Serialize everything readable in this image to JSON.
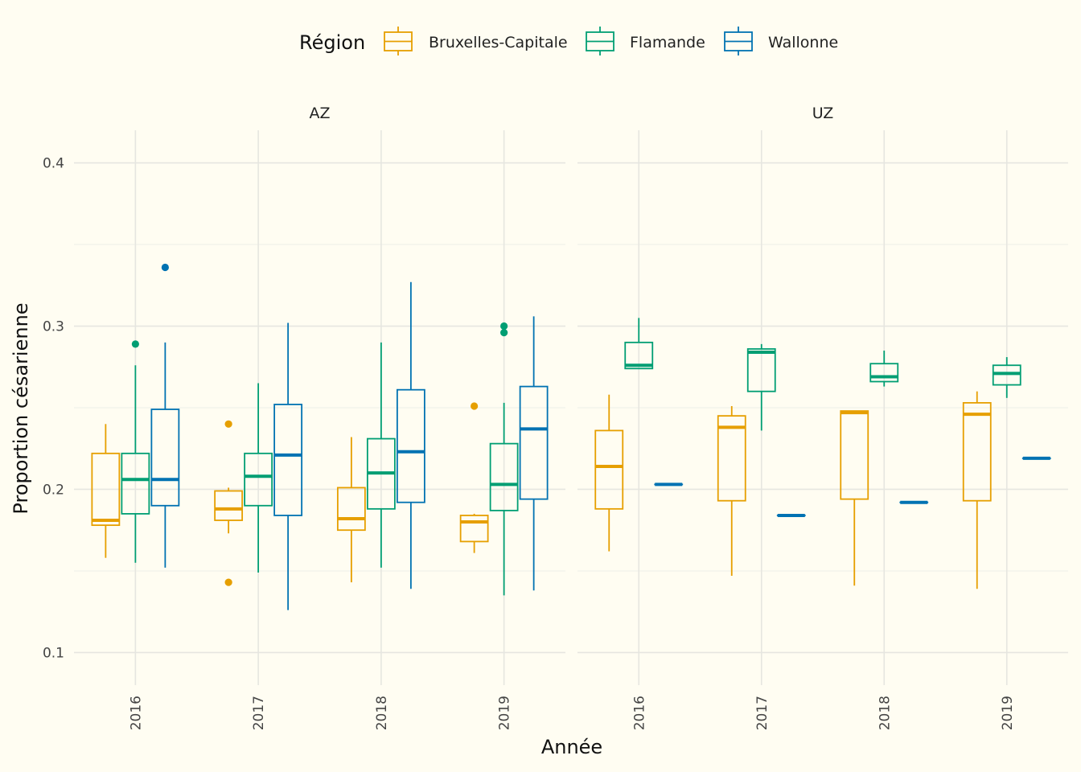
{
  "chart_data": {
    "type": "boxplot",
    "xlabel": "Année",
    "ylabel": "Proportion césarienne",
    "ylim": [
      0.08,
      0.42
    ],
    "yticks": [
      0.1,
      0.2,
      0.3,
      0.4
    ],
    "ytick_labels": [
      "0.1",
      "0.2",
      "0.3",
      "0.4"
    ],
    "categories": [
      "2016",
      "2017",
      "2018",
      "2019"
    ],
    "grid": true,
    "legend": {
      "title": "Région",
      "position": "top",
      "entries": [
        "Bruxelles-Capitale",
        "Flamande",
        "Wallonne"
      ]
    },
    "colors": {
      "Bruxelles-Capitale": "#e69f00",
      "Flamande": "#009e73",
      "Wallonne": "#0072b2"
    },
    "facets": [
      {
        "label": "AZ",
        "groups": [
          {
            "year": "2016",
            "region": "Bruxelles-Capitale",
            "whisker_low": 0.158,
            "q1": 0.178,
            "median": 0.181,
            "q3": 0.222,
            "whisker_high": 0.24,
            "outliers": []
          },
          {
            "year": "2016",
            "region": "Flamande",
            "whisker_low": 0.155,
            "q1": 0.185,
            "median": 0.206,
            "q3": 0.222,
            "whisker_high": 0.276,
            "outliers": [
              0.289
            ]
          },
          {
            "year": "2016",
            "region": "Wallonne",
            "whisker_low": 0.152,
            "q1": 0.19,
            "median": 0.206,
            "q3": 0.249,
            "whisker_high": 0.29,
            "outliers": [
              0.336
            ]
          },
          {
            "year": "2017",
            "region": "Bruxelles-Capitale",
            "whisker_low": 0.173,
            "q1": 0.181,
            "median": 0.188,
            "q3": 0.199,
            "whisker_high": 0.201,
            "outliers": [
              0.24,
              0.143
            ]
          },
          {
            "year": "2017",
            "region": "Flamande",
            "whisker_low": 0.149,
            "q1": 0.19,
            "median": 0.208,
            "q3": 0.222,
            "whisker_high": 0.265,
            "outliers": []
          },
          {
            "year": "2017",
            "region": "Wallonne",
            "whisker_low": 0.126,
            "q1": 0.184,
            "median": 0.221,
            "q3": 0.252,
            "whisker_high": 0.302,
            "outliers": []
          },
          {
            "year": "2018",
            "region": "Bruxelles-Capitale",
            "whisker_low": 0.143,
            "q1": 0.175,
            "median": 0.182,
            "q3": 0.201,
            "whisker_high": 0.232,
            "outliers": []
          },
          {
            "year": "2018",
            "region": "Flamande",
            "whisker_low": 0.152,
            "q1": 0.188,
            "median": 0.21,
            "q3": 0.231,
            "whisker_high": 0.29,
            "outliers": []
          },
          {
            "year": "2018",
            "region": "Wallonne",
            "whisker_low": 0.139,
            "q1": 0.192,
            "median": 0.223,
            "q3": 0.261,
            "whisker_high": 0.327,
            "outliers": []
          },
          {
            "year": "2019",
            "region": "Bruxelles-Capitale",
            "whisker_low": 0.161,
            "q1": 0.168,
            "median": 0.18,
            "q3": 0.184,
            "whisker_high": 0.185,
            "outliers": [
              0.251
            ]
          },
          {
            "year": "2019",
            "region": "Flamande",
            "whisker_low": 0.135,
            "q1": 0.187,
            "median": 0.203,
            "q3": 0.228,
            "whisker_high": 0.253,
            "outliers": [
              0.296,
              0.3
            ]
          },
          {
            "year": "2019",
            "region": "Wallonne",
            "whisker_low": 0.138,
            "q1": 0.194,
            "median": 0.237,
            "q3": 0.263,
            "whisker_high": 0.306,
            "outliers": []
          }
        ]
      },
      {
        "label": "UZ",
        "groups": [
          {
            "year": "2016",
            "region": "Bruxelles-Capitale",
            "whisker_low": 0.162,
            "q1": 0.188,
            "median": 0.214,
            "q3": 0.236,
            "whisker_high": 0.258,
            "outliers": []
          },
          {
            "year": "2016",
            "region": "Flamande",
            "whisker_low": 0.274,
            "q1": 0.274,
            "median": 0.276,
            "q3": 0.29,
            "whisker_high": 0.305,
            "outliers": []
          },
          {
            "year": "2016",
            "region": "Wallonne",
            "whisker_low": 0.203,
            "q1": 0.203,
            "median": 0.203,
            "q3": 0.203,
            "whisker_high": 0.203,
            "outliers": []
          },
          {
            "year": "2017",
            "region": "Bruxelles-Capitale",
            "whisker_low": 0.147,
            "q1": 0.193,
            "median": 0.238,
            "q3": 0.245,
            "whisker_high": 0.251,
            "outliers": []
          },
          {
            "year": "2017",
            "region": "Flamande",
            "whisker_low": 0.236,
            "q1": 0.26,
            "median": 0.284,
            "q3": 0.286,
            "whisker_high": 0.289,
            "outliers": []
          },
          {
            "year": "2017",
            "region": "Wallonne",
            "whisker_low": 0.184,
            "q1": 0.184,
            "median": 0.184,
            "q3": 0.184,
            "whisker_high": 0.184,
            "outliers": []
          },
          {
            "year": "2018",
            "region": "Bruxelles-Capitale",
            "whisker_low": 0.141,
            "q1": 0.194,
            "median": 0.247,
            "q3": 0.248,
            "whisker_high": 0.248,
            "outliers": []
          },
          {
            "year": "2018",
            "region": "Flamande",
            "whisker_low": 0.263,
            "q1": 0.266,
            "median": 0.269,
            "q3": 0.277,
            "whisker_high": 0.285,
            "outliers": []
          },
          {
            "year": "2018",
            "region": "Wallonne",
            "whisker_low": 0.192,
            "q1": 0.192,
            "median": 0.192,
            "q3": 0.192,
            "whisker_high": 0.192,
            "outliers": []
          },
          {
            "year": "2019",
            "region": "Bruxelles-Capitale",
            "whisker_low": 0.139,
            "q1": 0.193,
            "median": 0.246,
            "q3": 0.253,
            "whisker_high": 0.26,
            "outliers": []
          },
          {
            "year": "2019",
            "region": "Flamande",
            "whisker_low": 0.256,
            "q1": 0.264,
            "median": 0.271,
            "q3": 0.276,
            "whisker_high": 0.281,
            "outliers": []
          },
          {
            "year": "2019",
            "region": "Wallonne",
            "whisker_low": 0.219,
            "q1": 0.219,
            "median": 0.219,
            "q3": 0.219,
            "whisker_high": 0.219,
            "outliers": []
          }
        ]
      }
    ]
  }
}
